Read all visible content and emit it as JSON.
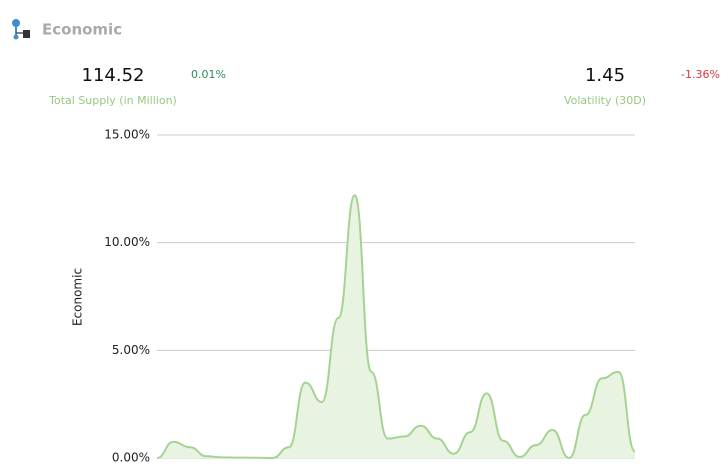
{
  "header": {
    "title": "Economic"
  },
  "stats": [
    {
      "value": 114.52,
      "change": "0.01%",
      "label": "Total Supply (in Million)"
    },
    {
      "value": 1.45,
      "change": "-1.36%",
      "label": "Volatility (30D)"
    }
  ],
  "chart_data": {
    "type": "area",
    "y_label": "Economic",
    "color": "#a5d394",
    "fill": "#e8f4e1",
    "grid": true,
    "values": [
      0,
      0.75,
      0.5,
      0.08,
      0.03,
      0.02,
      0.01,
      0,
      0.5,
      3.5,
      2.6,
      6.5,
      12.2,
      4,
      0.9,
      1.0,
      1.5,
      0.9,
      0.2,
      1.2,
      3.0,
      0.8,
      0.05,
      0.6,
      1.3,
      0,
      2.0,
      3.7,
      4.0,
      0.3
    ],
    "ylim": [
      0,
      15
    ],
    "yticks": [
      {
        "value": 0,
        "label": "0.00%"
      },
      {
        "value": 5,
        "label": "5.00%"
      },
      {
        "value": 10,
        "label": "10.00%"
      },
      {
        "value": 15,
        "label": "15.00%"
      }
    ]
  }
}
